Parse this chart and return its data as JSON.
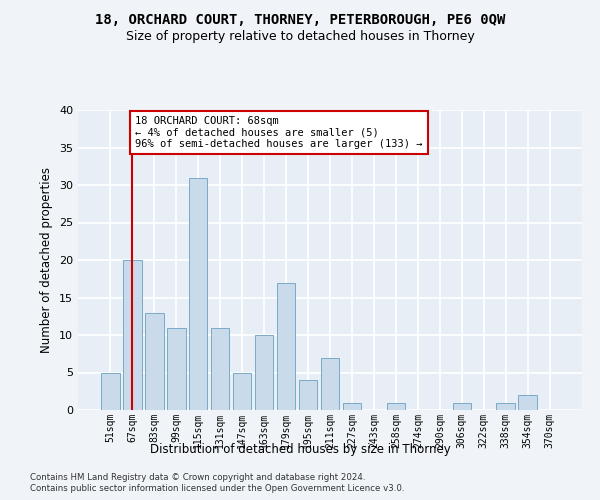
{
  "title": "18, ORCHARD COURT, THORNEY, PETERBOROUGH, PE6 0QW",
  "subtitle": "Size of property relative to detached houses in Thorney",
  "xlabel": "Distribution of detached houses by size in Thorney",
  "ylabel": "Number of detached properties",
  "categories": [
    "51sqm",
    "67sqm",
    "83sqm",
    "99sqm",
    "115sqm",
    "131sqm",
    "147sqm",
    "163sqm",
    "179sqm",
    "195sqm",
    "211sqm",
    "227sqm",
    "243sqm",
    "258sqm",
    "274sqm",
    "290sqm",
    "306sqm",
    "322sqm",
    "338sqm",
    "354sqm",
    "370sqm"
  ],
  "values": [
    5,
    20,
    13,
    11,
    31,
    11,
    5,
    10,
    17,
    4,
    7,
    1,
    0,
    1,
    0,
    0,
    1,
    0,
    1,
    2,
    0
  ],
  "bar_color": "#c9daea",
  "bar_edge_color": "#7aaac8",
  "annotation_text": "18 ORCHARD COURT: 68sqm\n← 4% of detached houses are smaller (5)\n96% of semi-detached houses are larger (133) →",
  "annotation_box_color": "#ffffff",
  "annotation_box_edge_color": "#cc0000",
  "vline_x": 1.0,
  "vline_color": "#cc0000",
  "ylim": [
    0,
    40
  ],
  "yticks": [
    0,
    5,
    10,
    15,
    20,
    25,
    30,
    35,
    40
  ],
  "background_color": "#e8eef5",
  "grid_color": "#ffffff",
  "footer_line1": "Contains HM Land Registry data © Crown copyright and database right 2024.",
  "footer_line2": "Contains public sector information licensed under the Open Government Licence v3.0.",
  "title_fontsize": 10,
  "subtitle_fontsize": 9
}
